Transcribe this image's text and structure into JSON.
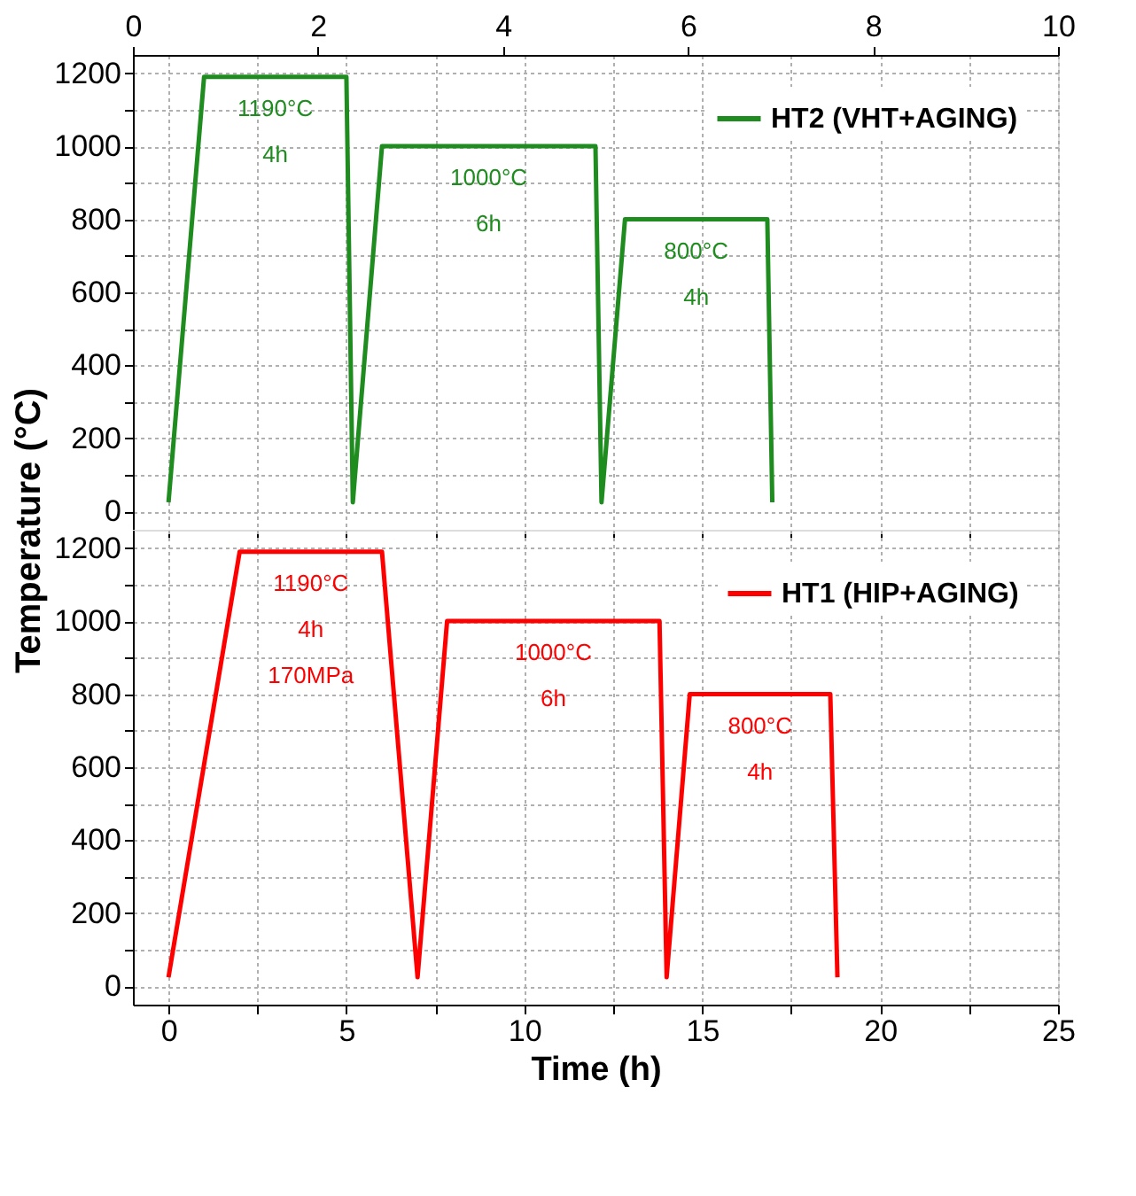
{
  "chart_data": [
    {
      "type": "line",
      "ylabel": "Temperature (°C)",
      "xlim": [
        -1,
        25
      ],
      "xticks": [
        {
          "value": 0,
          "label": null
        },
        {
          "value": 2.5,
          "label": null
        },
        {
          "value": 5,
          "label": null
        },
        {
          "value": 7.5,
          "label": null
        },
        {
          "value": 10,
          "label": null
        },
        {
          "value": 12.5,
          "label": null
        },
        {
          "value": 15,
          "label": null
        },
        {
          "value": 17.5,
          "label": null
        },
        {
          "value": 20,
          "label": null
        },
        {
          "value": 22.5,
          "label": null
        },
        {
          "value": 25,
          "label": null
        }
      ],
      "x2lim": [
        0,
        10
      ],
      "x2ticks": [
        0,
        2,
        4,
        6,
        8,
        10
      ],
      "ylim": [
        -50,
        1250
      ],
      "yticks": [
        0,
        {
          "value": 100,
          "label": null
        },
        200,
        {
          "value": 300,
          "label": null
        },
        400,
        {
          "value": 500,
          "label": null
        },
        600,
        {
          "value": 700,
          "label": null
        },
        800,
        {
          "value": 900,
          "label": null
        },
        1000,
        {
          "value": 1100,
          "label": null
        },
        1200
      ],
      "tick_labels": "y",
      "grid": true,
      "legend": "top right",
      "line_style": "solid",
      "marker": "none",
      "series": [
        {
          "name": "HT2 (VHT+AGING)",
          "color": "#1e8c1e",
          "x": [
            0,
            1.0,
            5.0,
            5.18,
            6.0,
            12.0,
            12.17,
            12.83,
            16.83,
            16.97
          ],
          "values": [
            25,
            1190,
            1190,
            25,
            1000,
            1000,
            25,
            800,
            800,
            25
          ]
        }
      ],
      "annotations": [
        "1190°C\n4h",
        "1000°C\n6h",
        "800°C\n4h"
      ]
    },
    {
      "type": "line",
      "xlabel": "Time (h)",
      "xlim": [
        -1,
        25
      ],
      "xticks": [
        0,
        {
          "value": 2.5,
          "label": null
        },
        5,
        {
          "value": 7.5,
          "label": null
        },
        10,
        {
          "value": 12.5,
          "label": null
        },
        15,
        {
          "value": 17.5,
          "label": null
        },
        20,
        {
          "value": 22.5,
          "label": null
        },
        25
      ],
      "ylim": [
        -50,
        1250
      ],
      "yticks": [
        0,
        {
          "value": 100,
          "label": null
        },
        200,
        {
          "value": 300,
          "label": null
        },
        400,
        {
          "value": 500,
          "label": null
        },
        600,
        {
          "value": 700,
          "label": null
        },
        800,
        {
          "value": 900,
          "label": null
        },
        1000,
        {
          "value": 1100,
          "label": null
        },
        1200
      ],
      "grid": true,
      "legend": "top right",
      "line_style": "solid",
      "marker": "none",
      "series": [
        {
          "name": "HT1 (HIP+AGING)",
          "color": "#ff0000",
          "x": [
            0,
            2.0,
            6.0,
            7.0,
            7.83,
            13.8,
            14.0,
            14.65,
            18.6,
            18.8
          ],
          "values": [
            25,
            1190,
            1190,
            25,
            1000,
            1000,
            25,
            800,
            800,
            25
          ]
        }
      ],
      "annotations": [
        "1190°C\n4h\n170MPa",
        "1000°C\n6h",
        "800°C\n4h"
      ]
    }
  ]
}
